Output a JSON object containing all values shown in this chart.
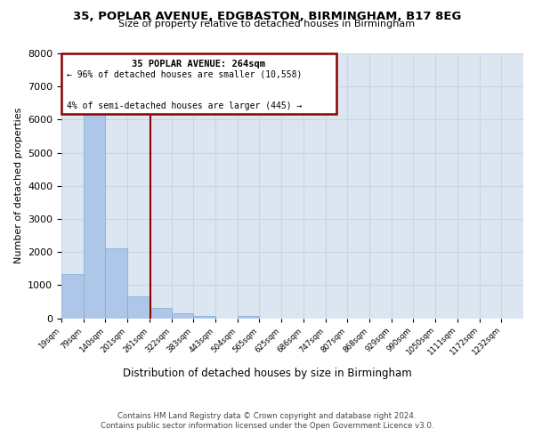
{
  "title": "35, POPLAR AVENUE, EDGBASTON, BIRMINGHAM, B17 8EG",
  "subtitle": "Size of property relative to detached houses in Birmingham",
  "xlabel": "Distribution of detached houses by size in Birmingham",
  "ylabel": "Number of detached properties",
  "bar_labels": [
    "19sqm",
    "79sqm",
    "140sqm",
    "201sqm",
    "261sqm",
    "322sqm",
    "383sqm",
    "443sqm",
    "504sqm",
    "565sqm",
    "625sqm",
    "686sqm",
    "747sqm",
    "807sqm",
    "868sqm",
    "929sqm",
    "990sqm",
    "1050sqm",
    "1111sqm",
    "1172sqm",
    "1232sqm"
  ],
  "bar_values": [
    1320,
    6600,
    2100,
    650,
    300,
    140,
    80,
    0,
    80,
    0,
    0,
    0,
    0,
    0,
    0,
    0,
    0,
    0,
    0,
    0,
    0
  ],
  "bar_color": "#aec6e8",
  "bar_edge_color": "#7aafd4",
  "ylim": [
    0,
    8000
  ],
  "yticks": [
    0,
    1000,
    2000,
    3000,
    4000,
    5000,
    6000,
    7000,
    8000
  ],
  "grid_color": "#c8d4e8",
  "bg_color": "#dce6f0",
  "property_line_color": "#8b0000",
  "annotation_title": "35 POPLAR AVENUE: 264sqm",
  "annotation_line1": "← 96% of detached houses are smaller (10,558)",
  "annotation_line2": "4% of semi-detached houses are larger (445) →",
  "annotation_box_color": "#8b0000",
  "footer_line1": "Contains HM Land Registry data © Crown copyright and database right 2024.",
  "footer_line2": "Contains public sector information licensed under the Open Government Licence v3.0."
}
